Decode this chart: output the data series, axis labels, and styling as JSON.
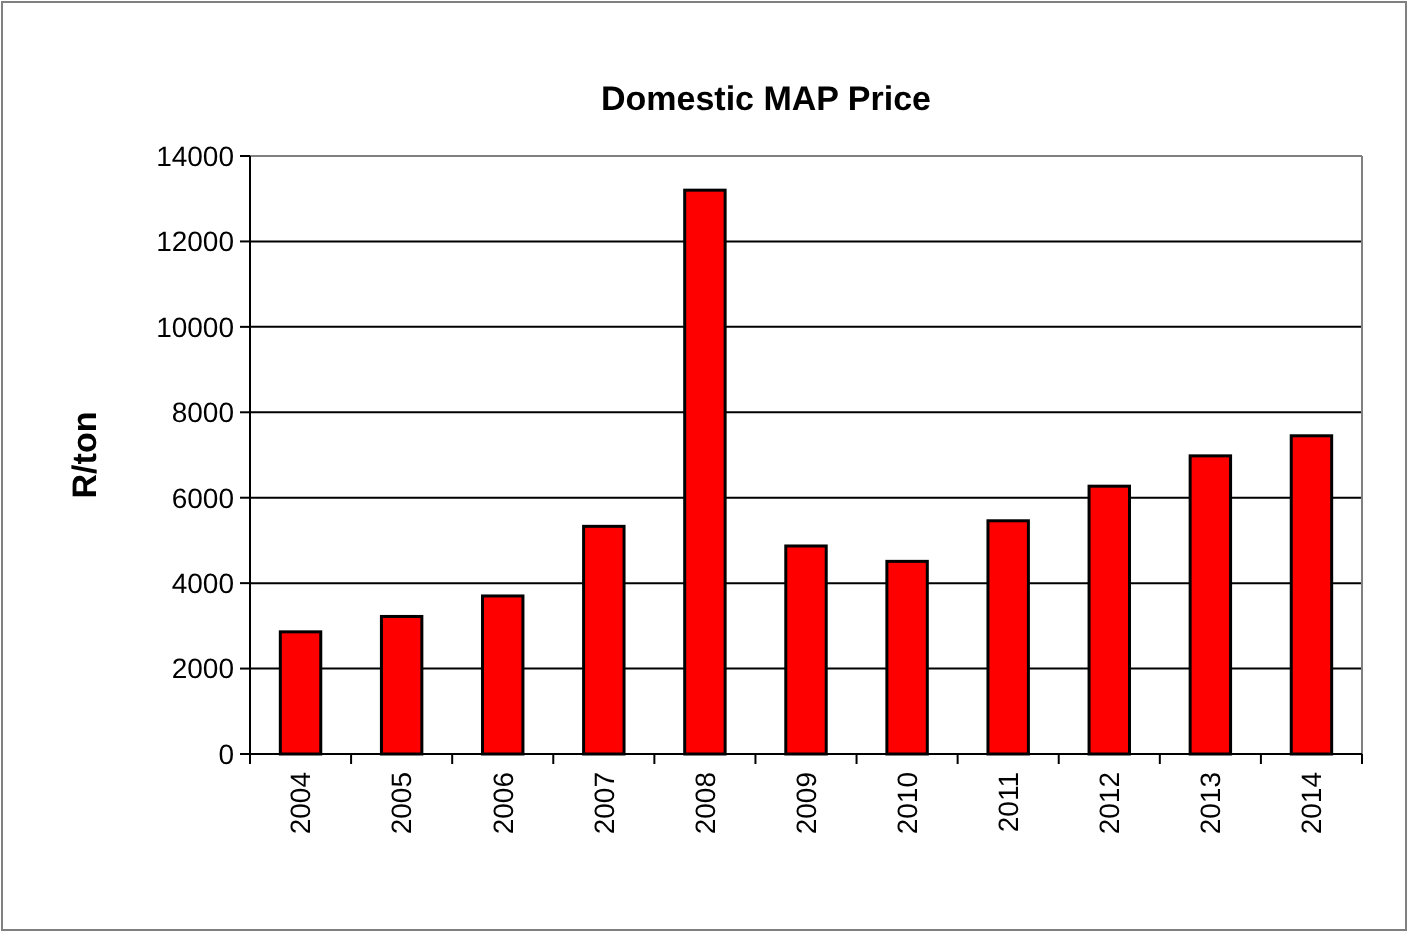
{
  "chart_data": {
    "type": "bar",
    "title": "Domestic MAP Price",
    "ylabel": "R/ton",
    "categories": [
      "2004",
      "2005",
      "2006",
      "2007",
      "2008",
      "2009",
      "2010",
      "2011",
      "2012",
      "2013",
      "2014"
    ],
    "values": [
      2860,
      3220,
      3700,
      5330,
      13200,
      4870,
      4510,
      5460,
      6270,
      6980,
      7450
    ],
    "color": "#ff0000",
    "ylim": [
      0,
      14000
    ],
    "yticks": [
      0,
      2000,
      4000,
      6000,
      8000,
      10000,
      12000,
      14000
    ],
    "grid": "y"
  }
}
